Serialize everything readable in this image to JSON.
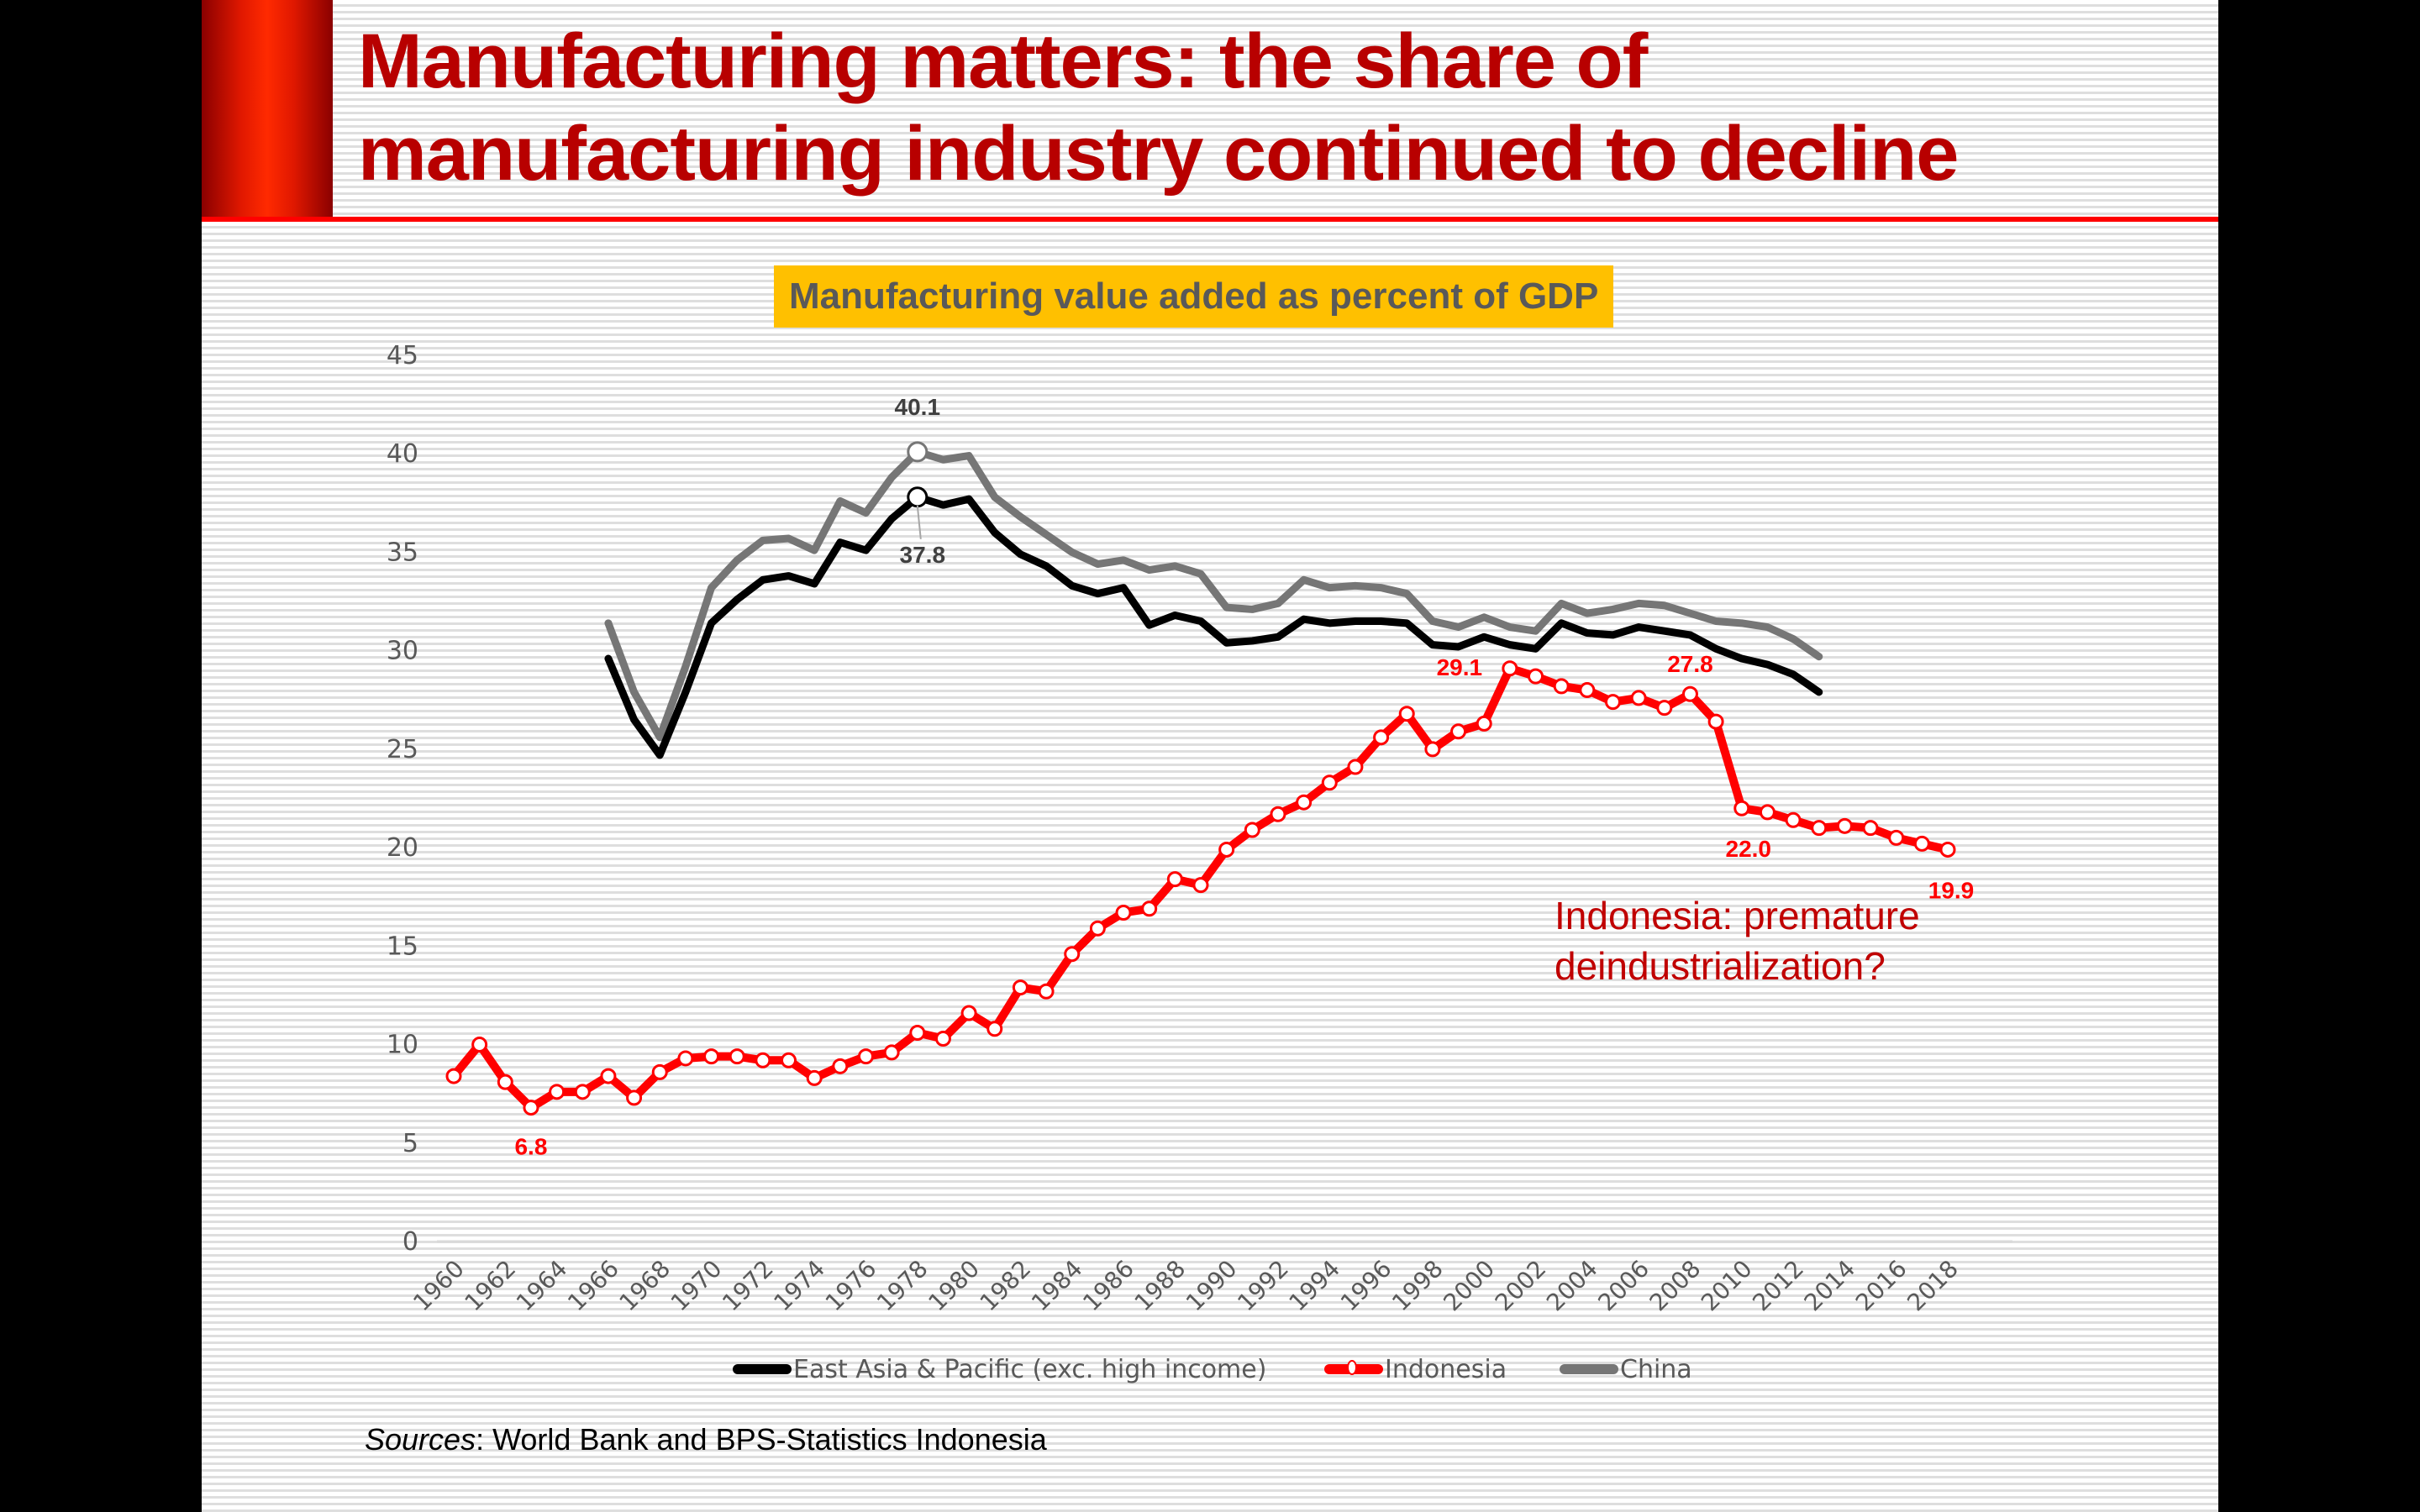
{
  "slide": {
    "title_line1": "Manufacturing matters: the share of",
    "title_line2": "manufacturing industry continued to decline",
    "sources_label": "Sources",
    "sources_text": ": World Bank and BPS-Statistics Indonesia",
    "annotation_line1": "Indonesia: premature",
    "annotation_line2": "deindustrialization?",
    "colors": {
      "title": "#b80000",
      "accent_bar": "#ff2a00",
      "rule": "#ff0000",
      "chart_title_bg": "#ffc000",
      "annotation": "#c00000"
    }
  },
  "chart_data": {
    "type": "line",
    "title": "Manufacturing value added as percent of GDP",
    "xlabel": "",
    "ylabel": "",
    "ylim": [
      0,
      45
    ],
    "yticks": [
      0,
      5,
      10,
      15,
      20,
      25,
      30,
      35,
      40,
      45
    ],
    "xticks": [
      "1960",
      "1962",
      "1964",
      "1966",
      "1968",
      "1970",
      "1972",
      "1974",
      "1976",
      "1978",
      "1980",
      "1982",
      "1984",
      "1986",
      "1988",
      "1990",
      "1992",
      "1994",
      "1996",
      "1998",
      "2000",
      "2002",
      "2004",
      "2006",
      "2008",
      "2010",
      "2012",
      "2014",
      "2016",
      "2018"
    ],
    "x": [
      1960,
      1961,
      1962,
      1963,
      1964,
      1965,
      1966,
      1967,
      1968,
      1969,
      1970,
      1971,
      1972,
      1973,
      1974,
      1975,
      1976,
      1977,
      1978,
      1979,
      1980,
      1981,
      1982,
      1983,
      1984,
      1985,
      1986,
      1987,
      1988,
      1989,
      1990,
      1991,
      1992,
      1993,
      1994,
      1995,
      1996,
      1997,
      1998,
      1999,
      2000,
      2001,
      2002,
      2003,
      2004,
      2005,
      2006,
      2007,
      2008,
      2009,
      2010,
      2011,
      2012,
      2013,
      2014,
      2015,
      2016,
      2017,
      2018
    ],
    "grid": false,
    "legend_position": "bottom",
    "series": [
      {
        "name": "East Asia & Pacific (exc. high income)",
        "color": "#000000",
        "marker": false,
        "values": [
          null,
          null,
          null,
          null,
          null,
          null,
          29.6,
          26.5,
          24.7,
          27.9,
          31.4,
          32.6,
          33.6,
          33.8,
          33.4,
          35.5,
          35.1,
          36.7,
          37.8,
          37.4,
          37.7,
          36.0,
          34.9,
          34.3,
          33.3,
          32.9,
          33.2,
          31.3,
          31.8,
          31.5,
          30.4,
          30.5,
          30.7,
          31.6,
          31.4,
          31.5,
          31.5,
          31.4,
          30.3,
          30.2,
          30.7,
          30.3,
          30.1,
          31.4,
          30.9,
          30.8,
          31.2,
          31.0,
          30.8,
          30.1,
          29.6,
          29.3,
          28.8,
          27.9,
          null,
          null,
          null,
          null,
          null
        ]
      },
      {
        "name": "Indonesia",
        "color": "#ff0000",
        "marker": true,
        "values": [
          8.4,
          10.0,
          8.1,
          6.8,
          7.6,
          7.6,
          8.4,
          7.3,
          8.6,
          9.3,
          9.4,
          9.4,
          9.2,
          9.2,
          8.3,
          8.9,
          9.4,
          9.6,
          10.6,
          10.3,
          11.6,
          10.8,
          12.9,
          12.7,
          14.6,
          15.9,
          16.7,
          16.9,
          18.4,
          18.1,
          19.9,
          20.9,
          21.7,
          22.3,
          23.3,
          24.1,
          25.6,
          26.8,
          25.0,
          25.9,
          26.3,
          29.1,
          28.7,
          28.2,
          28.0,
          27.4,
          27.6,
          27.1,
          27.8,
          26.4,
          22.0,
          21.8,
          21.4,
          21.0,
          21.1,
          21.0,
          20.5,
          20.2,
          19.9
        ]
      },
      {
        "name": "China",
        "color": "#767676",
        "marker": false,
        "values": [
          null,
          null,
          null,
          null,
          null,
          null,
          31.4,
          27.9,
          25.6,
          29.2,
          33.2,
          34.6,
          35.6,
          35.7,
          35.1,
          37.6,
          37.0,
          38.8,
          40.1,
          39.7,
          39.9,
          37.8,
          36.8,
          35.9,
          35.0,
          34.4,
          34.6,
          34.1,
          34.3,
          33.9,
          32.2,
          32.1,
          32.4,
          33.6,
          33.2,
          33.3,
          33.2,
          32.9,
          31.5,
          31.2,
          31.7,
          31.2,
          31.0,
          32.4,
          31.9,
          32.1,
          32.4,
          32.3,
          31.9,
          31.5,
          31.4,
          31.2,
          30.6,
          29.7,
          null,
          null,
          null,
          null,
          null
        ]
      }
    ],
    "data_labels": [
      {
        "series": "China",
        "x": 1978,
        "text": "40.1",
        "color": "#404040"
      },
      {
        "series": "East Asia & Pacific (exc. high income)",
        "x": 1978,
        "text": "37.8",
        "color": "#404040"
      },
      {
        "series": "Indonesia",
        "x": 1963,
        "text": "6.8",
        "color": "#ff0000"
      },
      {
        "series": "Indonesia",
        "x": 2001,
        "text": "29.1",
        "color": "#ff0000"
      },
      {
        "series": "Indonesia",
        "x": 2008,
        "text": "27.8",
        "color": "#ff0000"
      },
      {
        "series": "Indonesia",
        "x": 2010,
        "text": "22.0",
        "color": "#ff0000"
      },
      {
        "series": "Indonesia",
        "x": 2018,
        "text": "19.9",
        "color": "#ff0000"
      }
    ]
  }
}
